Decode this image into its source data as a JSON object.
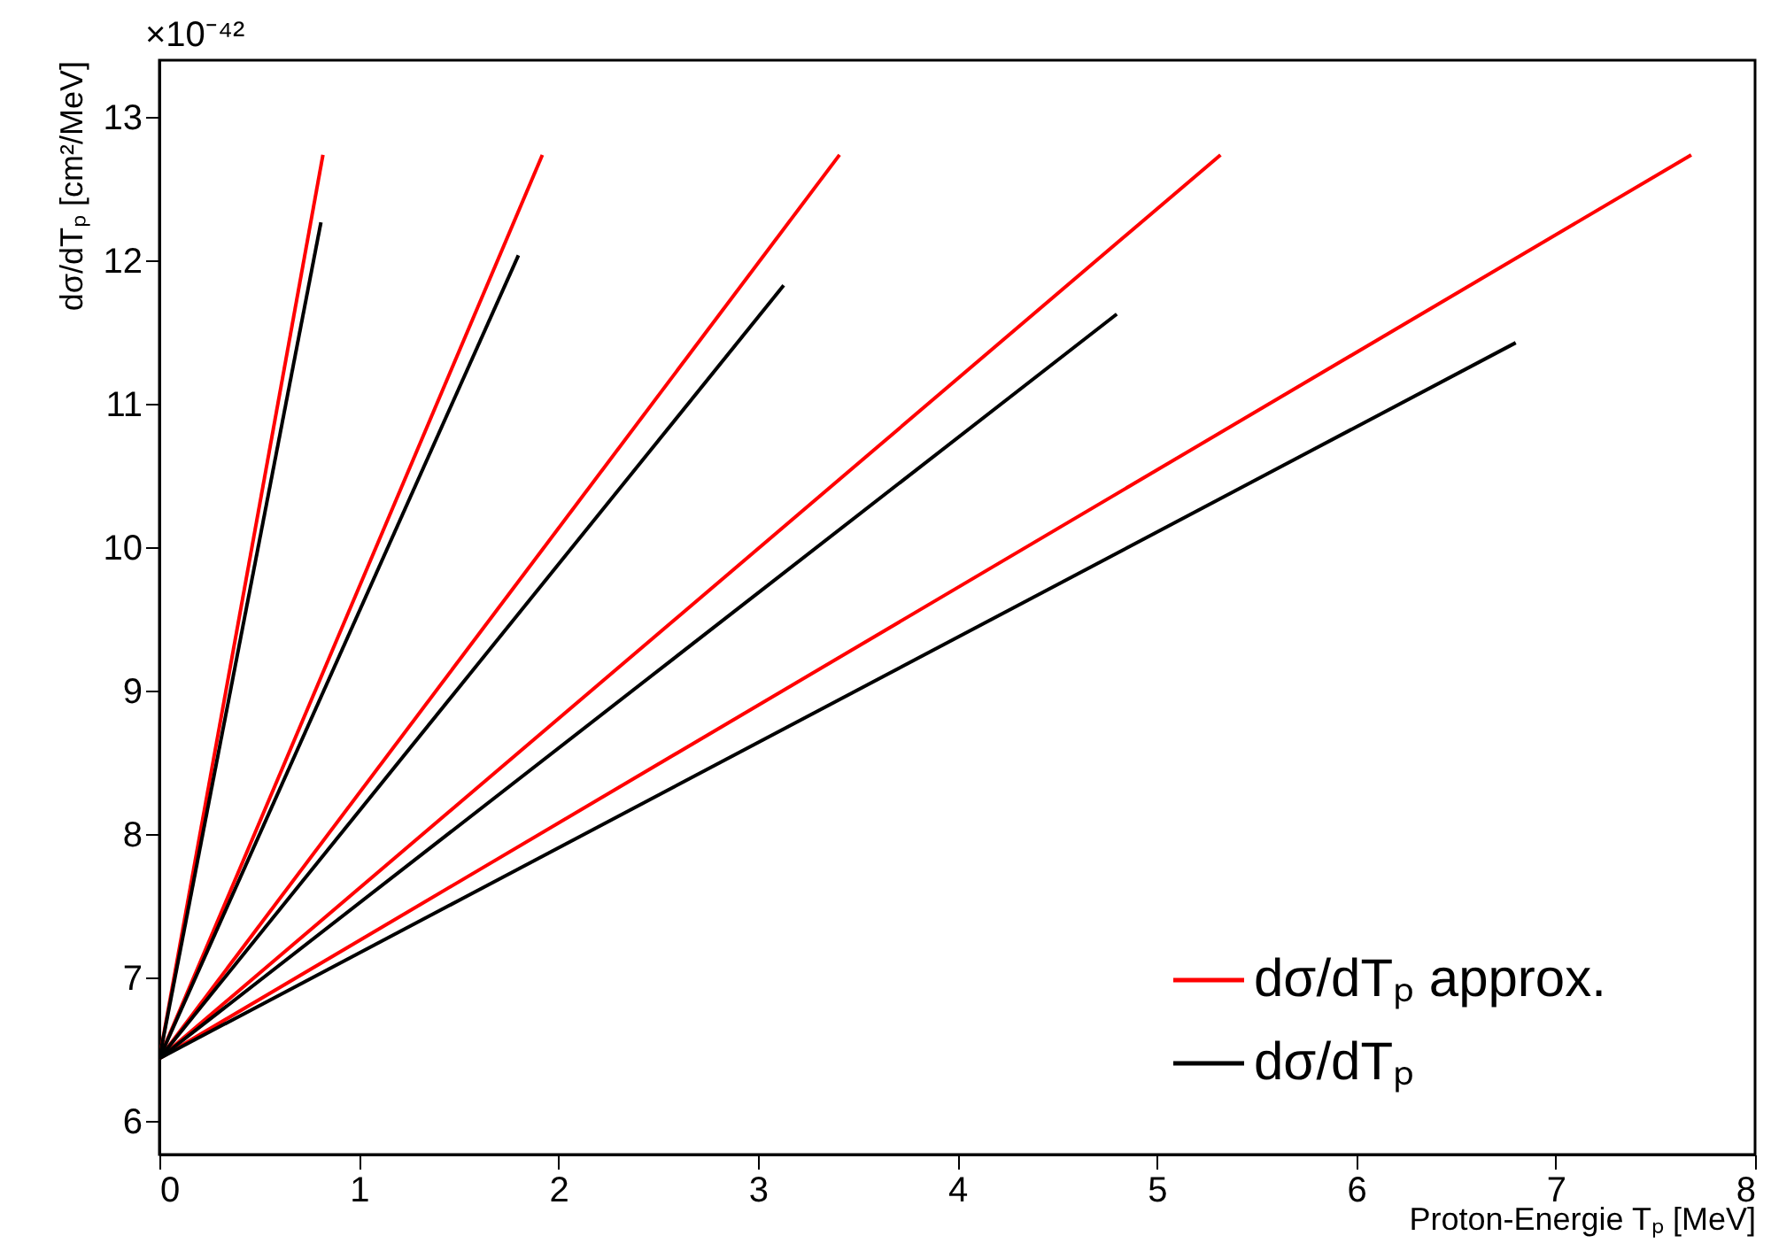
{
  "chart_data": {
    "type": "line",
    "xlabel": "Proton-Energie Tₚ  [MeV]",
    "ylabel": "dσ/dTₚ  [cm²/MeV]",
    "annotations": [
      "×10⁻⁴²"
    ],
    "xlim": [
      0,
      8
    ],
    "ylim": [
      5.77,
      13.4
    ],
    "xticks": [
      0,
      1,
      2,
      3,
      4,
      5,
      6,
      7,
      8
    ],
    "yticks": [
      6,
      7,
      8,
      9,
      10,
      11,
      12,
      13
    ],
    "grid": false,
    "legend": "bottom right",
    "marker": "none",
    "line_style": "solid",
    "series": [
      {
        "name": "dσ/dTₚ approx.",
        "color": "#ff0000",
        "x": [
          0,
          0.82
        ],
        "values": [
          6.44,
          12.74
        ]
      },
      {
        "color": "#ff0000",
        "x": [
          0,
          1.92
        ],
        "values": [
          6.44,
          12.74
        ]
      },
      {
        "color": "#ff0000",
        "x": [
          0,
          3.41
        ],
        "values": [
          6.44,
          12.74
        ]
      },
      {
        "color": "#ff0000",
        "x": [
          0,
          5.32
        ],
        "values": [
          6.44,
          12.74
        ]
      },
      {
        "color": "#ff0000",
        "x": [
          0,
          7.68
        ],
        "values": [
          6.44,
          12.74
        ]
      },
      {
        "name": "dσ/dTₚ",
        "color": "#000000",
        "x": [
          0,
          0.81
        ],
        "values": [
          6.44,
          12.27
        ]
      },
      {
        "color": "#000000",
        "x": [
          0,
          1.8
        ],
        "values": [
          6.44,
          12.04
        ]
      },
      {
        "color": "#000000",
        "x": [
          0,
          3.13
        ],
        "values": [
          6.44,
          11.83
        ]
      },
      {
        "color": "#000000",
        "x": [
          0,
          4.8
        ],
        "values": [
          6.44,
          11.63
        ]
      },
      {
        "color": "#000000",
        "x": [
          0,
          6.8
        ],
        "values": [
          6.44,
          11.43
        ]
      }
    ]
  }
}
